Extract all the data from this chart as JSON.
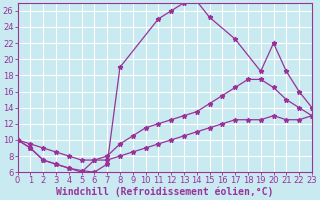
{
  "background_color": "#c8eaf0",
  "grid_color": "#ffffff",
  "line_color": "#993399",
  "xlabel": "Windchill (Refroidissement éolien,°C)",
  "xlim": [
    0,
    23
  ],
  "ylim": [
    6,
    27
  ],
  "yticks": [
    6,
    8,
    10,
    12,
    14,
    16,
    18,
    20,
    22,
    24,
    26
  ],
  "xticks": [
    0,
    1,
    2,
    3,
    4,
    5,
    6,
    7,
    8,
    9,
    10,
    11,
    12,
    13,
    14,
    15,
    16,
    17,
    18,
    19,
    20,
    21,
    22,
    23
  ],
  "line1_x": [
    0,
    1,
    2,
    3,
    4,
    5,
    6,
    7,
    8,
    11,
    12,
    13,
    14,
    15,
    17,
    19,
    20,
    21,
    22,
    23
  ],
  "line1_y": [
    10,
    9,
    7.5,
    7,
    6.5,
    6.2,
    6.0,
    7.0,
    19.0,
    25.0,
    26.0,
    27.0,
    27.2,
    25.2,
    22.5,
    18.5,
    22.0,
    18.5,
    16.0,
    14.0
  ],
  "line2_x": [
    0,
    1,
    2,
    3,
    4,
    5,
    6,
    7,
    8,
    9,
    10,
    11,
    12,
    13,
    14,
    15,
    16,
    17,
    18,
    19,
    20,
    21,
    22,
    23
  ],
  "line2_y": [
    10,
    9,
    7.5,
    7,
    6.5,
    6.0,
    7.5,
    8.0,
    9.5,
    10.5,
    11.5,
    12.0,
    12.5,
    13.0,
    13.5,
    14.5,
    15.5,
    16.5,
    17.5,
    17.5,
    16.5,
    15.0,
    14.0,
    13.0
  ],
  "line3_x": [
    0,
    1,
    2,
    3,
    4,
    5,
    6,
    7,
    8,
    9,
    10,
    11,
    12,
    13,
    14,
    15,
    16,
    17,
    18,
    19,
    20,
    21,
    22,
    23
  ],
  "line3_y": [
    10,
    9.5,
    9.0,
    8.5,
    8.0,
    7.5,
    7.5,
    7.5,
    8.0,
    8.5,
    9.0,
    9.5,
    10.0,
    10.5,
    11.0,
    11.5,
    12.0,
    12.5,
    12.5,
    12.5,
    13.0,
    12.5,
    12.5,
    13.0
  ],
  "marker": "*",
  "markersize": 3.5,
  "linewidth": 0.9,
  "xlabel_fontsize": 7,
  "tick_fontsize": 6
}
